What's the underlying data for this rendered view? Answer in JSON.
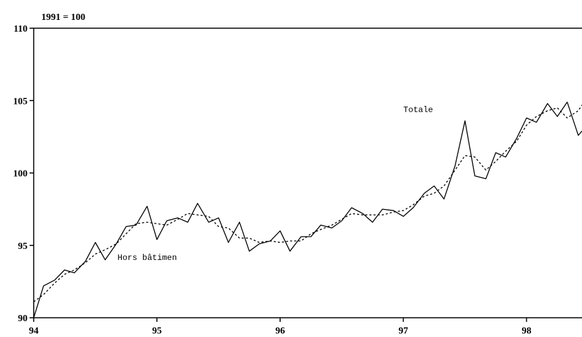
{
  "chart_data": {
    "type": "line",
    "unit_label": "1991 = 100",
    "xlim": [
      94,
      98.45
    ],
    "ylim": [
      90,
      110
    ],
    "x_ticks": [
      94,
      95,
      96,
      97,
      98
    ],
    "x_tick_labels": [
      "94",
      "95",
      "96",
      "97",
      "98"
    ],
    "y_ticks": [
      90,
      95,
      100,
      105,
      110
    ],
    "y_tick_labels": [
      "90",
      "95",
      "100",
      "105",
      "110"
    ],
    "series": [
      {
        "name": "Hors bâtimen",
        "style": "solid",
        "color": "#000000",
        "points": [
          [
            94.0,
            90.0
          ],
          [
            94.08,
            92.2
          ],
          [
            94.17,
            92.6
          ],
          [
            94.25,
            93.3
          ],
          [
            94.33,
            93.1
          ],
          [
            94.42,
            93.9
          ],
          [
            94.5,
            95.2
          ],
          [
            94.58,
            94.0
          ],
          [
            94.67,
            95.1
          ],
          [
            94.75,
            96.3
          ],
          [
            94.83,
            96.4
          ],
          [
            94.92,
            97.7
          ],
          [
            95.0,
            95.4
          ],
          [
            95.08,
            96.7
          ],
          [
            95.17,
            96.9
          ],
          [
            95.25,
            96.6
          ],
          [
            95.33,
            97.9
          ],
          [
            95.42,
            96.6
          ],
          [
            95.5,
            96.9
          ],
          [
            95.58,
            95.2
          ],
          [
            95.67,
            96.6
          ],
          [
            95.75,
            94.6
          ],
          [
            95.83,
            95.1
          ],
          [
            95.92,
            95.3
          ],
          [
            96.0,
            96.0
          ],
          [
            96.08,
            94.6
          ],
          [
            96.17,
            95.6
          ],
          [
            96.25,
            95.6
          ],
          [
            96.33,
            96.4
          ],
          [
            96.42,
            96.2
          ],
          [
            96.5,
            96.7
          ],
          [
            96.58,
            97.6
          ],
          [
            96.67,
            97.2
          ],
          [
            96.75,
            96.6
          ],
          [
            96.83,
            97.5
          ],
          [
            96.92,
            97.4
          ],
          [
            97.0,
            97.0
          ],
          [
            97.08,
            97.6
          ],
          [
            97.17,
            98.6
          ],
          [
            97.25,
            99.1
          ],
          [
            97.33,
            98.2
          ],
          [
            97.42,
            100.5
          ],
          [
            97.5,
            103.6
          ],
          [
            97.58,
            99.8
          ],
          [
            97.67,
            99.6
          ],
          [
            97.75,
            101.4
          ],
          [
            97.83,
            101.1
          ],
          [
            97.92,
            102.4
          ],
          [
            98.0,
            103.8
          ],
          [
            98.08,
            103.5
          ],
          [
            98.17,
            104.8
          ],
          [
            98.25,
            103.9
          ],
          [
            98.33,
            104.9
          ],
          [
            98.42,
            102.6
          ],
          [
            98.45,
            102.9
          ]
        ]
      },
      {
        "name": "Totale",
        "style": "dotted",
        "color": "#000000",
        "points": [
          [
            94.0,
            91.1
          ],
          [
            94.08,
            91.6
          ],
          [
            94.17,
            92.4
          ],
          [
            94.25,
            93.0
          ],
          [
            94.33,
            93.3
          ],
          [
            94.42,
            93.8
          ],
          [
            94.5,
            94.4
          ],
          [
            94.58,
            94.7
          ],
          [
            94.67,
            95.1
          ],
          [
            94.75,
            95.8
          ],
          [
            94.83,
            96.5
          ],
          [
            94.92,
            96.6
          ],
          [
            95.0,
            96.5
          ],
          [
            95.08,
            96.4
          ],
          [
            95.17,
            96.8
          ],
          [
            95.25,
            97.2
          ],
          [
            95.33,
            97.1
          ],
          [
            95.42,
            97.0
          ],
          [
            95.5,
            96.3
          ],
          [
            95.58,
            96.2
          ],
          [
            95.67,
            95.5
          ],
          [
            95.75,
            95.5
          ],
          [
            95.83,
            95.2
          ],
          [
            95.92,
            95.3
          ],
          [
            96.0,
            95.2
          ],
          [
            96.08,
            95.3
          ],
          [
            96.17,
            95.3
          ],
          [
            96.25,
            95.8
          ],
          [
            96.33,
            96.1
          ],
          [
            96.42,
            96.4
          ],
          [
            96.5,
            96.8
          ],
          [
            96.58,
            97.2
          ],
          [
            96.67,
            97.1
          ],
          [
            96.75,
            97.1
          ],
          [
            96.83,
            97.1
          ],
          [
            96.92,
            97.3
          ],
          [
            97.0,
            97.4
          ],
          [
            97.08,
            97.8
          ],
          [
            97.17,
            98.4
          ],
          [
            97.25,
            98.6
          ],
          [
            97.33,
            99.1
          ],
          [
            97.42,
            100.2
          ],
          [
            97.5,
            101.2
          ],
          [
            97.58,
            101.1
          ],
          [
            97.67,
            100.2
          ],
          [
            97.75,
            100.8
          ],
          [
            97.83,
            101.5
          ],
          [
            97.92,
            102.2
          ],
          [
            98.0,
            103.3
          ],
          [
            98.08,
            103.9
          ],
          [
            98.17,
            104.3
          ],
          [
            98.25,
            104.5
          ],
          [
            98.33,
            103.8
          ],
          [
            98.42,
            104.3
          ],
          [
            98.45,
            104.7
          ]
        ]
      }
    ],
    "series_labels": [
      {
        "text": "Totale",
        "x": 97.0,
        "y": 104.2
      },
      {
        "text": "Hors bâtimen",
        "x": 94.68,
        "y": 94.0
      }
    ],
    "grid": false,
    "legend": "none"
  }
}
